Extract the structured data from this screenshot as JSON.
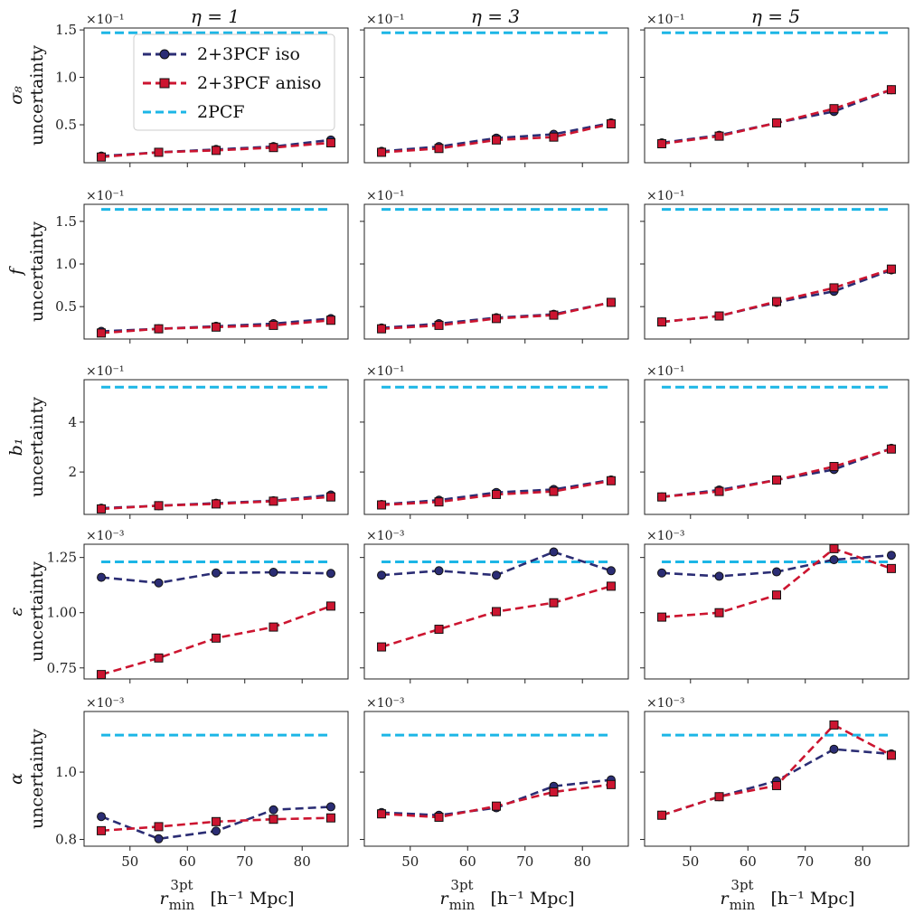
{
  "chart_data": {
    "type": "line",
    "column_titles": [
      "η = 1",
      "η = 3",
      "η = 5"
    ],
    "x_values": [
      45,
      55,
      65,
      75,
      85
    ],
    "x_ticks": [
      50,
      60,
      70,
      80
    ],
    "x_tick_labels": [
      "50",
      "60",
      "70",
      "80"
    ],
    "xlim": [
      42,
      88
    ],
    "xlabel": {
      "symbol": "r",
      "sub": "min",
      "sup": "3pt",
      "units": "[h⁻¹ Mpc]"
    },
    "legend": {
      "placement": "upper-left of top-left panel",
      "entries": [
        {
          "label": "2+3PCF iso",
          "color": "#2b2d74",
          "marker": "circle",
          "linestyle": "dashed"
        },
        {
          "label": "2+3PCF aniso",
          "color": "#cc1530",
          "marker": "square",
          "linestyle": "dashed"
        },
        {
          "label": "2PCF",
          "color": "#1cb6e6",
          "marker": "none",
          "linestyle": "dashed"
        }
      ]
    },
    "rows": [
      {
        "param": "σ₈",
        "ylabel": "uncertainty",
        "multiplier": "×10⁻¹",
        "ylim": [
          0.1,
          1.52
        ],
        "yticks": [
          0.5,
          1.0,
          1.5
        ],
        "ytick_labels": [
          "0.5",
          "1.0",
          "1.5"
        ],
        "panels": [
          {
            "iso": [
              0.17,
              0.21,
              0.24,
              0.27,
              0.34
            ],
            "aniso": [
              0.16,
              0.21,
              0.23,
              0.26,
              0.31
            ],
            "pcf2": 1.47
          },
          {
            "iso": [
              0.22,
              0.27,
              0.36,
              0.4,
              0.52
            ],
            "aniso": [
              0.21,
              0.25,
              0.34,
              0.37,
              0.51
            ],
            "pcf2": 1.47
          },
          {
            "iso": [
              0.31,
              0.39,
              0.52,
              0.64,
              0.87
            ],
            "aniso": [
              0.3,
              0.38,
              0.52,
              0.67,
              0.87
            ],
            "pcf2": 1.47
          }
        ]
      },
      {
        "param": "f",
        "ylabel": "uncertainty",
        "multiplier": "×10⁻¹",
        "ylim": [
          0.12,
          1.7
        ],
        "yticks": [
          0.5,
          1.0,
          1.5
        ],
        "ytick_labels": [
          "0.5",
          "1.0",
          "1.5"
        ],
        "panels": [
          {
            "iso": [
              0.21,
              0.24,
              0.27,
              0.3,
              0.36
            ],
            "aniso": [
              0.19,
              0.24,
              0.26,
              0.28,
              0.34
            ],
            "pcf2": 1.64
          },
          {
            "iso": [
              0.25,
              0.3,
              0.37,
              0.41,
              0.55
            ],
            "aniso": [
              0.24,
              0.28,
              0.36,
              0.4,
              0.55
            ],
            "pcf2": 1.64
          },
          {
            "iso": [
              0.32,
              0.39,
              0.55,
              0.68,
              0.93
            ],
            "aniso": [
              0.32,
              0.39,
              0.56,
              0.72,
              0.94
            ],
            "pcf2": 1.64
          }
        ]
      },
      {
        "param": "b₁",
        "ylabel": "uncertainty",
        "multiplier": "×10⁻¹",
        "ylim": [
          0.3,
          5.7
        ],
        "yticks": [
          2,
          4
        ],
        "ytick_labels": [
          "2",
          "4"
        ],
        "panels": [
          {
            "iso": [
              0.55,
              0.65,
              0.75,
              0.85,
              1.08
            ],
            "aniso": [
              0.52,
              0.65,
              0.72,
              0.83,
              1.0
            ],
            "pcf2": 5.4
          },
          {
            "iso": [
              0.7,
              0.87,
              1.18,
              1.3,
              1.68
            ],
            "aniso": [
              0.68,
              0.8,
              1.1,
              1.22,
              1.65
            ],
            "pcf2": 5.4
          },
          {
            "iso": [
              1.0,
              1.28,
              1.68,
              2.1,
              2.95
            ],
            "aniso": [
              1.0,
              1.22,
              1.68,
              2.22,
              2.92
            ],
            "pcf2": 5.4
          }
        ]
      },
      {
        "param": "ε",
        "ylabel": "uncertainty",
        "multiplier": "×10⁻³",
        "ylim": [
          0.7,
          1.31
        ],
        "yticks": [
          0.75,
          1.0,
          1.25
        ],
        "ytick_labels": [
          "0.75",
          "1.00",
          "1.25"
        ],
        "panels": [
          {
            "iso": [
              1.16,
              1.135,
              1.18,
              1.183,
              1.178
            ],
            "aniso": [
              0.72,
              0.795,
              0.885,
              0.935,
              1.03
            ],
            "pcf2": 1.23
          },
          {
            "iso": [
              1.17,
              1.19,
              1.17,
              1.275,
              1.19
            ],
            "aniso": [
              0.845,
              0.925,
              1.005,
              1.045,
              1.12
            ],
            "pcf2": 1.23
          },
          {
            "iso": [
              1.18,
              1.165,
              1.185,
              1.24,
              1.26
            ],
            "aniso": [
              0.98,
              1.0,
              1.08,
              1.29,
              1.2
            ],
            "pcf2": 1.23
          }
        ]
      },
      {
        "param": "α",
        "ylabel": "uncertainty",
        "multiplier": "×10⁻³",
        "ylim": [
          0.78,
          1.18
        ],
        "yticks": [
          0.8,
          1.0
        ],
        "ytick_labels": [
          "0.8",
          "1.0"
        ],
        "panels": [
          {
            "iso": [
              0.868,
              0.802,
              0.825,
              0.888,
              0.897
            ],
            "aniso": [
              0.826,
              0.838,
              0.853,
              0.86,
              0.864
            ],
            "pcf2": 1.11
          },
          {
            "iso": [
              0.88,
              0.872,
              0.894,
              0.958,
              0.977
            ],
            "aniso": [
              0.876,
              0.866,
              0.899,
              0.941,
              0.963
            ],
            "pcf2": 1.11
          },
          {
            "iso": [
              0.872,
              0.927,
              0.974,
              1.068,
              1.054
            ],
            "aniso": [
              0.872,
              0.927,
              0.96,
              1.14,
              1.05
            ],
            "pcf2": 1.11
          }
        ]
      }
    ]
  }
}
